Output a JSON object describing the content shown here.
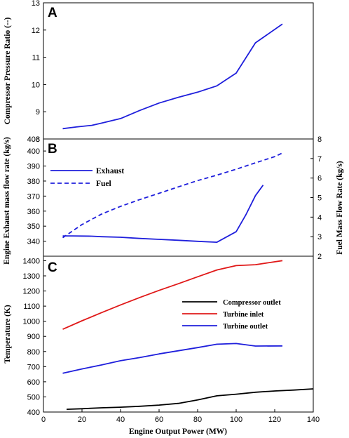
{
  "chart_data": [
    {
      "type": "line",
      "panel_label": "A",
      "xlim": [
        0,
        140
      ],
      "ylim": [
        8,
        13
      ],
      "yticks": [
        "8",
        "9",
        "10",
        "11",
        "12",
        "13"
      ],
      "ylabel": "Compressor Pressure Ratio (--)",
      "series": [
        {
          "color": "#1f1fdc",
          "style": "solid",
          "x": [
            10,
            17,
            25,
            30,
            40,
            50,
            60,
            70,
            80,
            90,
            100,
            110,
            124
          ],
          "y": [
            8.38,
            8.44,
            8.5,
            8.58,
            8.75,
            9.05,
            9.32,
            9.53,
            9.72,
            9.95,
            10.42,
            11.53,
            12.22
          ]
        }
      ]
    },
    {
      "type": "line",
      "panel_label": "B",
      "xlim": [
        0,
        140
      ],
      "ylim": [
        330,
        408
      ],
      "yticks": [
        "340",
        "350",
        "360",
        "370",
        "380",
        "390",
        "400",
        "408"
      ],
      "ylabel": "Engine Exhaust  mass flow rate (kg/s)",
      "y2lim": [
        2,
        8
      ],
      "y2ticks": [
        "2",
        "3",
        "4",
        "5",
        "6",
        "7",
        "8"
      ],
      "y2label": "Fuel Mass Flow Rate (kg/s)",
      "legend": [
        "Exhaust",
        "Fuel"
      ],
      "series": [
        {
          "name": "Exhaust",
          "axis": "left",
          "color": "#1f1fdc",
          "style": "solid",
          "x": [
            10,
            15,
            20,
            25,
            30,
            40,
            50,
            60,
            70,
            80,
            90,
            100,
            105,
            110,
            114
          ],
          "y": [
            343.5,
            343.5,
            343.4,
            343.3,
            343.0,
            342.6,
            341.8,
            341.2,
            340.6,
            339.9,
            339.3,
            346.3,
            357.5,
            370.3,
            377.3
          ]
        },
        {
          "name": "Fuel",
          "axis": "right",
          "color": "#1f1fdc",
          "style": "dashed",
          "x": [
            10,
            20,
            30,
            40,
            50,
            60,
            70,
            80,
            90,
            100,
            110,
            120,
            124
          ],
          "y": [
            2.95,
            3.62,
            4.15,
            4.55,
            4.9,
            5.22,
            5.55,
            5.87,
            6.15,
            6.45,
            6.78,
            7.1,
            7.28
          ]
        }
      ]
    },
    {
      "type": "line",
      "panel_label": "C",
      "xlim": [
        0,
        140
      ],
      "ylim": [
        400,
        1430
      ],
      "yticks": [
        "400",
        "500",
        "600",
        "700",
        "800",
        "900",
        "1000",
        "1100",
        "1200",
        "1300",
        "1400"
      ],
      "xticks": [
        "0",
        "20",
        "40",
        "60",
        "80",
        "100",
        "120",
        "140"
      ],
      "ylabel": "Temperature (K)",
      "xlabel": "Engine Output Power (MW)",
      "legend": [
        "Compressor outlet",
        "Turbine inlet",
        "Turbine outlet"
      ],
      "series": [
        {
          "name": "Compressor outlet",
          "color": "#000000",
          "style": "solid",
          "x": [
            12,
            20,
            30,
            40,
            50,
            60,
            70,
            80,
            90,
            100,
            110,
            120,
            130,
            140
          ],
          "y": [
            418,
            422,
            428,
            432,
            438,
            446,
            457,
            480,
            507,
            518,
            531,
            539,
            545,
            553
          ]
        },
        {
          "name": "Turbine inlet",
          "color": "#e01818",
          "style": "solid",
          "x": [
            10,
            20,
            30,
            40,
            50,
            60,
            70,
            80,
            90,
            100,
            110,
            124
          ],
          "y": [
            947,
            1003,
            1056,
            1108,
            1157,
            1204,
            1248,
            1294,
            1339,
            1368,
            1374,
            1401
          ]
        },
        {
          "name": "Turbine outlet",
          "color": "#1f1fdc",
          "style": "solid",
          "x": [
            10,
            20,
            30,
            40,
            50,
            60,
            70,
            80,
            90,
            100,
            110,
            124
          ],
          "y": [
            656,
            685,
            711,
            739,
            760,
            784,
            805,
            826,
            848,
            853,
            836,
            837
          ]
        }
      ]
    }
  ]
}
